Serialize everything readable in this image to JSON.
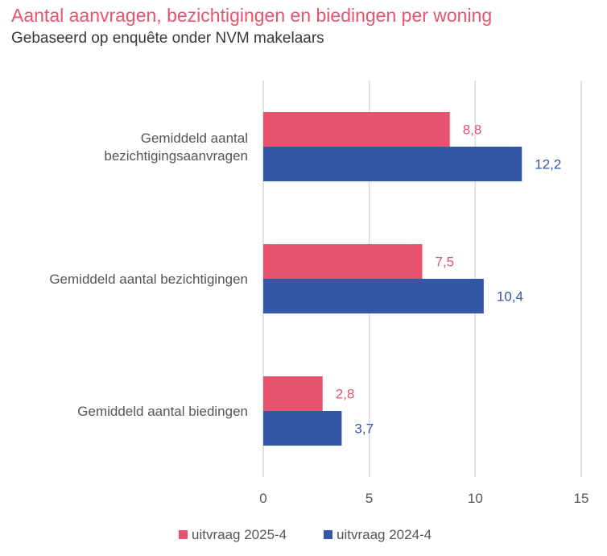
{
  "header": {
    "title": "Aantal aanvragen, bezichtigingen en biedingen per woning",
    "subtitle": "Gebaseerd op enquête onder NVM makelaars"
  },
  "chart_data": {
    "type": "bar",
    "orientation": "horizontal",
    "title": "Aantal aanvragen, bezichtigingen en biedingen per woning",
    "subtitle": "Gebaseerd op enquête onder NVM makelaars",
    "categories": [
      [
        "Gemiddeld aantal",
        "bezichtigingsaanvragen"
      ],
      [
        "Gemiddeld aantal bezichtigingen"
      ],
      [
        "Gemiddeld aantal biedingen"
      ]
    ],
    "series": [
      {
        "name": "uitvraag 2025-4",
        "color": "#e8536f",
        "values": [
          8.8,
          7.5,
          2.8
        ],
        "labels": [
          "8,8",
          "7,5",
          "2,8"
        ]
      },
      {
        "name": "uitvraag 2024-4",
        "color": "#3557a8",
        "values": [
          12.2,
          10.4,
          3.7
        ],
        "labels": [
          "12,2",
          "10,4",
          "3,7"
        ]
      }
    ],
    "xlim": [
      0,
      15
    ],
    "xticks": [
      0,
      5,
      10,
      15
    ],
    "xtick_labels": [
      "0",
      "5",
      "10",
      "15"
    ],
    "grid": true,
    "legend": "bottom-center",
    "gridline_color": "#d9d9d9"
  }
}
